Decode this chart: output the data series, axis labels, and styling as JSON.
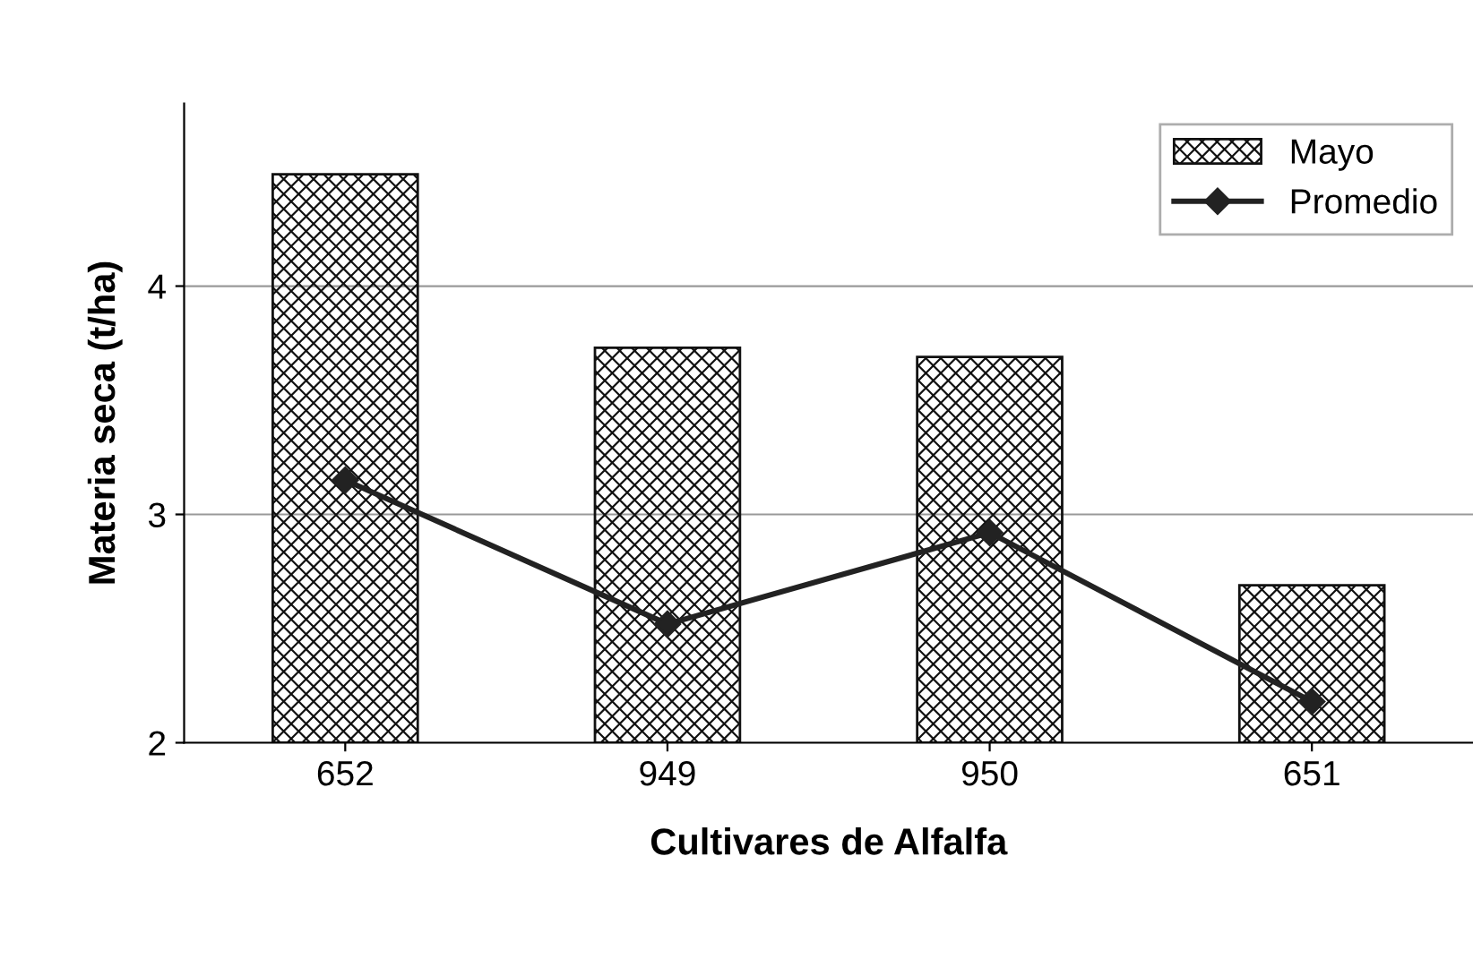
{
  "chart_data": {
    "type": "bar",
    "xlabel": "Cultivares de Alfalfa",
    "ylabel": "Materia seca (t/ha)",
    "categories": [
      "652",
      "949",
      "950",
      "651"
    ],
    "series": [
      {
        "name": "Mayo",
        "color": "#111111",
        "values": [
          4.49,
          3.73,
          3.69,
          2.69
        ]
      },
      {
        "name": "Promedio",
        "type": "line",
        "color": "#222222",
        "marker": "diamond",
        "values": [
          3.15,
          2.52,
          2.92,
          2.18
        ]
      }
    ],
    "ylim": [
      2,
      4.8
    ],
    "yticks": [
      2,
      3,
      4
    ],
    "grid": "y",
    "legend": "top right"
  }
}
